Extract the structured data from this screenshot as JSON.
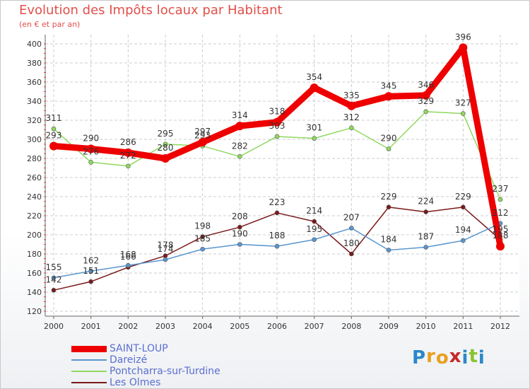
{
  "header": {
    "title": "Evolution des Impôts locaux par Habitant",
    "subtitle": "(en € et par an)"
  },
  "logo": {
    "letters": [
      "P",
      "r",
      "o",
      "x",
      "i",
      "t",
      "i"
    ],
    "colors": [
      "#2a88c8",
      "#e8a020",
      "#e8a020",
      "#c82828",
      "#2a88c8",
      "#8ac230",
      "#2a88c8"
    ]
  },
  "chart_data": {
    "type": "line",
    "title": "Evolution des Impôts locaux par Habitant",
    "subtitle": "(en € et par an)",
    "xlabel": "",
    "ylabel": "",
    "x": [
      "2000",
      "2001",
      "2002",
      "2003",
      "2004",
      "2005",
      "2006",
      "2007",
      "2008",
      "2009",
      "2010",
      "2011",
      "2012"
    ],
    "ylim": [
      120,
      400
    ],
    "yticks": [
      120,
      140,
      160,
      180,
      200,
      220,
      240,
      260,
      280,
      300,
      320,
      340,
      360,
      380,
      400
    ],
    "grid": true,
    "legend_position": "bottom-left",
    "series": [
      {
        "name": "SAINT-LOUP",
        "color": "#ee0000",
        "emphasis": true,
        "values": [
          293,
          290,
          286,
          280,
          297,
          314,
          318,
          354,
          335,
          345,
          346,
          396,
          188
        ],
        "labels": [
          "293",
          "290",
          "286",
          "280",
          "297",
          "314",
          "318",
          "354",
          "335",
          "345",
          "346",
          "396",
          "188"
        ]
      },
      {
        "name": "Dareizé",
        "color": "#5a96d0",
        "emphasis": false,
        "values": [
          155,
          162,
          168,
          174,
          185,
          190,
          188,
          195,
          207,
          184,
          187,
          194,
          212
        ],
        "labels": [
          "155",
          "162",
          "168",
          "174",
          "185",
          "190",
          "188",
          "195",
          "207",
          "184",
          "187",
          "194",
          "212"
        ]
      },
      {
        "name": "Pontcharra-sur-Turdine",
        "color": "#90d860",
        "emphasis": false,
        "values": [
          311,
          276,
          272,
          295,
          293,
          282,
          303,
          301,
          312,
          290,
          329,
          327,
          237
        ],
        "labels": [
          "311",
          "276",
          "272",
          "295",
          "293",
          "282",
          "303",
          "301",
          "312",
          "290",
          "329",
          "327",
          "237"
        ]
      },
      {
        "name": "Les Olmes",
        "color": "#7a1a1a",
        "emphasis": false,
        "values": [
          142,
          151,
          166,
          178,
          198,
          208,
          223,
          214,
          180,
          229,
          224,
          229,
          195
        ],
        "labels": [
          "142",
          "151",
          "166",
          "178",
          "198",
          "208",
          "223",
          "214",
          "180",
          "229",
          "224",
          "229",
          "195"
        ]
      }
    ]
  }
}
